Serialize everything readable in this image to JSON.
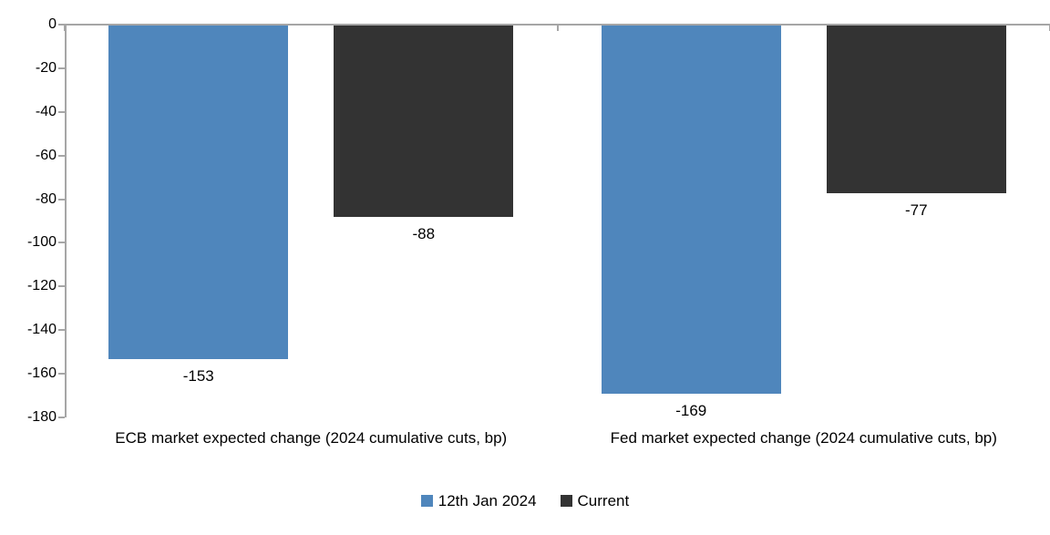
{
  "chart_data": {
    "type": "bar",
    "title": "",
    "orientation": "vertical",
    "categories": [
      "ECB market expected change (2024 cumulative cuts, bp)",
      "Fed market expected change (2024 cumulative cuts, bp)"
    ],
    "series": [
      {
        "name": "12th Jan 2024",
        "color": "#4F86BC",
        "values": [
          -153,
          -169
        ],
        "data_labels": [
          "-153",
          "-169"
        ]
      },
      {
        "name": "Current",
        "color": "#333333",
        "values": [
          -88,
          -77
        ],
        "data_labels": [
          "-88",
          "-77"
        ]
      }
    ],
    "y_axis": {
      "min": -180,
      "max": 0,
      "tick_step": 20,
      "tick_labels": [
        "0",
        "-20",
        "-40",
        "-60",
        "-80",
        "-100",
        "-120",
        "-140",
        "-160",
        "-180"
      ]
    },
    "legend": {
      "position": "bottom",
      "entries": [
        "12th Jan 2024",
        "Current"
      ]
    },
    "grid": false,
    "colors": {
      "axis": "#A6A6A6",
      "text": "#000000",
      "background": "#FFFFFF"
    }
  }
}
